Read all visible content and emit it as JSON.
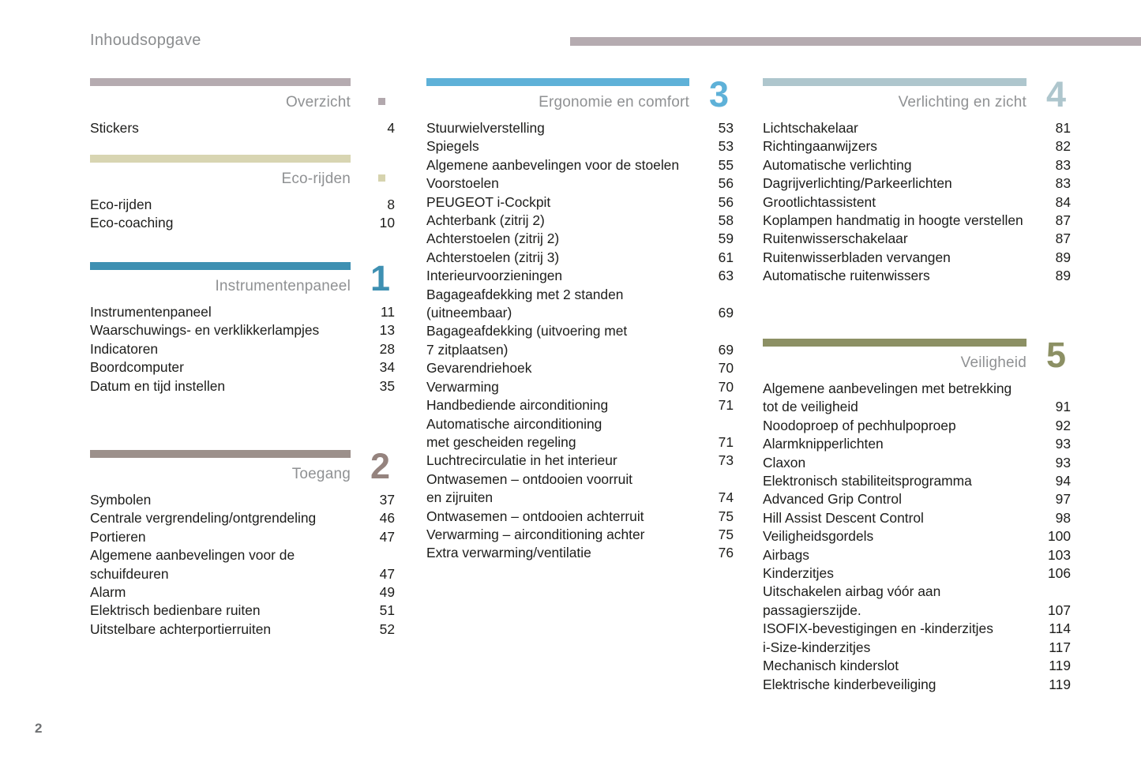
{
  "page": {
    "title": "Inhoudsopgave",
    "footer_page_number": "2",
    "header_rule_color": "#b5abb0"
  },
  "columns": [
    {
      "sections": [
        {
          "id": "overzicht",
          "header": "Overzicht",
          "marker": "square",
          "bar_color": "#b5abb0",
          "accent": "#b2a8ad",
          "items": [
            {
              "label": "Stickers",
              "page": "4"
            }
          ]
        },
        {
          "id": "eco-rijden",
          "header": "Eco-rijden",
          "marker": "square",
          "bar_color": "#d8d5b2",
          "accent": "#d6d3ae",
          "items": [
            {
              "label": "Eco-rijden",
              "page": "8"
            },
            {
              "label": "Eco-coaching",
              "page": "10"
            }
          ]
        },
        {
          "id": "instrumentenpaneel",
          "header": "Instrumentenpaneel",
          "marker": "number",
          "chapter": "1",
          "bar_color": "#3e90b2",
          "accent": "#3e90b2",
          "items": [
            {
              "label": "Instrumentenpaneel",
              "page": "11"
            },
            {
              "label": "Waarschuwings- en verklikkerlampjes",
              "page": "13"
            },
            {
              "label": "Indicatoren",
              "page": "28"
            },
            {
              "label": "Boordcomputer",
              "page": "34"
            },
            {
              "label": "Datum en tijd instellen",
              "page": "35"
            }
          ]
        },
        {
          "id": "toegang",
          "header": "Toegang",
          "marker": "number",
          "chapter": "2",
          "bar_color": "#9c908b",
          "accent": "#95837e",
          "items": [
            {
              "label": "Symbolen",
              "page": "37"
            },
            {
              "label": "Centrale vergrendeling/ontgrendeling",
              "page": "46"
            },
            {
              "label": "Portieren",
              "page": "47"
            },
            {
              "label": "Algemene aanbevelingen voor de\nschuifdeuren",
              "page": "47"
            },
            {
              "label": "Alarm",
              "page": "49"
            },
            {
              "label": "Elektrisch bedienbare ruiten",
              "page": "51"
            },
            {
              "label": "Uitstelbare achterportierruiten",
              "page": "52"
            }
          ]
        }
      ]
    },
    {
      "sections": [
        {
          "id": "ergonomie",
          "header": "Ergonomie en comfort",
          "marker": "number",
          "chapter": "3",
          "bar_color": "#5eb1d8",
          "accent": "#5eb1d8",
          "items": [
            {
              "label": "Stuurwielverstelling",
              "page": "53"
            },
            {
              "label": "Spiegels",
              "page": "53"
            },
            {
              "label": "Algemene aanbevelingen voor de stoelen",
              "page": "55"
            },
            {
              "label": "Voorstoelen",
              "page": "56"
            },
            {
              "label": "PEUGEOT i-Cockpit",
              "page": "56"
            },
            {
              "label": "Achterbank (zitrij 2)",
              "page": "58"
            },
            {
              "label": "Achterstoelen (zitrij 2)",
              "page": "59"
            },
            {
              "label": "Achterstoelen (zitrij 3)",
              "page": "61"
            },
            {
              "label": "Interieurvoorzieningen",
              "page": "63"
            },
            {
              "label": "Bagageafdekking met 2 standen\n(uitneembaar)",
              "page": "69"
            },
            {
              "label": "Bagageafdekking (uitvoering met\n7 zitplaatsen)",
              "page": "69"
            },
            {
              "label": "Gevarendriehoek",
              "page": "70"
            },
            {
              "label": "Verwarming",
              "page": "70"
            },
            {
              "label": "Handbediende airconditioning",
              "page": "71"
            },
            {
              "label": "Automatische airconditioning\nmet gescheiden regeling",
              "page": "71"
            },
            {
              "label": "Luchtrecirculatie in het interieur",
              "page": "73"
            },
            {
              "label": "Ontwasemen – ontdooien voorruit\nen zijruiten",
              "page": "74"
            },
            {
              "label": "Ontwasemen – ontdooien achterruit",
              "page": "75"
            },
            {
              "label": "Verwarming – airconditioning achter",
              "page": "75"
            },
            {
              "label": "Extra verwarming/ventilatie",
              "page": "76"
            }
          ]
        }
      ]
    },
    {
      "sections": [
        {
          "id": "verlichting",
          "header": "Verlichting en zicht",
          "marker": "number",
          "chapter": "4",
          "bar_color": "#aec6cd",
          "accent": "#aec6cd",
          "items": [
            {
              "label": "Lichtschakelaar",
              "page": "81"
            },
            {
              "label": "Richtingaanwijzers",
              "page": "82"
            },
            {
              "label": "Automatische verlichting",
              "page": "83"
            },
            {
              "label": "Dagrijverlichting/Parkeerlichten",
              "page": "83"
            },
            {
              "label": "Grootlichtassistent",
              "page": "84"
            },
            {
              "label": "Koplampen handmatig in hoogte verstellen",
              "page": "87"
            },
            {
              "label": "Ruitenwisserschakelaar",
              "page": "87"
            },
            {
              "label": "Ruitenwisserbladen vervangen",
              "page": "89"
            },
            {
              "label": "Automatische ruitenwissers",
              "page": "89"
            }
          ]
        },
        {
          "id": "veiligheid",
          "header": "Veiligheid",
          "marker": "number",
          "chapter": "5",
          "bar_color": "#8c9064",
          "accent": "#8c9064",
          "items": [
            {
              "label": "Algemene aanbevelingen met betrekking\ntot de veiligheid",
              "page": "91"
            },
            {
              "label": "Noodoproep of pechhulpoproep",
              "page": "92"
            },
            {
              "label": "Alarmknipperlichten",
              "page": "93"
            },
            {
              "label": "Claxon",
              "page": "93"
            },
            {
              "label": "Elektronisch stabiliteitsprogramma",
              "page": "94"
            },
            {
              "label": "Advanced Grip Control",
              "page": "97"
            },
            {
              "label": "Hill Assist Descent Control",
              "page": "98"
            },
            {
              "label": "Veiligheidsgordels",
              "page": "100"
            },
            {
              "label": "Airbags",
              "page": "103"
            },
            {
              "label": "Kinderzitjes",
              "page": "106"
            },
            {
              "label": "Uitschakelen airbag vóór aan\npassagierszijde.",
              "page": "107"
            },
            {
              "label": "ISOFIX-bevestigingen en -kinderzitjes",
              "page": "114"
            },
            {
              "label": "i-Size-kinderzitjes",
              "page": "117"
            },
            {
              "label": "Mechanisch kinderslot",
              "page": "119"
            },
            {
              "label": "Elektrische kinderbeveiliging",
              "page": "119"
            }
          ]
        }
      ]
    }
  ]
}
